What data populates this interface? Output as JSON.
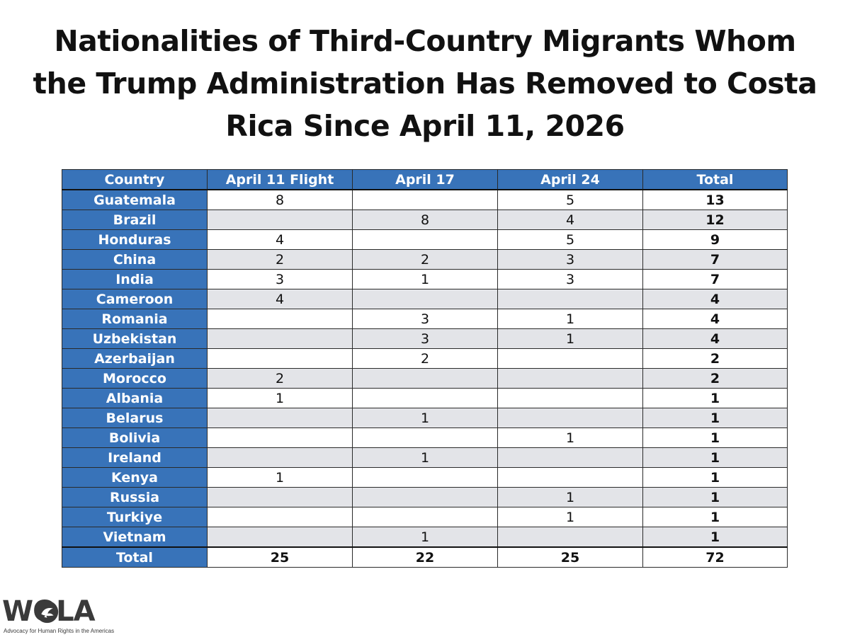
{
  "title": "Nationalities of Third-Country Migrants Whom the Trump Administration Has Removed to Costa Rica Since April 11, 2026",
  "chart_data": {
    "type": "table",
    "columns": [
      "Country",
      "April 11 Flight",
      "April 17",
      "April 24",
      "Total"
    ],
    "rows": [
      [
        "Guatemala",
        "8",
        "",
        "5",
        "13"
      ],
      [
        "Brazil",
        "",
        "8",
        "4",
        "12"
      ],
      [
        "Honduras",
        "4",
        "",
        "5",
        "9"
      ],
      [
        "China",
        "2",
        "2",
        "3",
        "7"
      ],
      [
        "India",
        "3",
        "1",
        "3",
        "7"
      ],
      [
        "Cameroon",
        "4",
        "",
        "",
        "4"
      ],
      [
        "Romania",
        "",
        "3",
        "1",
        "4"
      ],
      [
        "Uzbekistan",
        "",
        "3",
        "1",
        "4"
      ],
      [
        "Azerbaijan",
        "",
        "2",
        "",
        "2"
      ],
      [
        "Morocco",
        "2",
        "",
        "",
        "2"
      ],
      [
        "Albania",
        "1",
        "",
        "",
        "1"
      ],
      [
        "Belarus",
        "",
        "1",
        "",
        "1"
      ],
      [
        "Bolivia",
        "",
        "",
        "1",
        "1"
      ],
      [
        "Ireland",
        "",
        "1",
        "",
        "1"
      ],
      [
        "Kenya",
        "1",
        "",
        "",
        "1"
      ],
      [
        "Russia",
        "",
        "",
        "1",
        "1"
      ],
      [
        "Turkiye",
        "",
        "",
        "1",
        "1"
      ],
      [
        "Vietnam",
        "",
        "1",
        "",
        "1"
      ]
    ],
    "totals": [
      "Total",
      "25",
      "22",
      "25",
      "72"
    ]
  },
  "logo": {
    "wordmark": "WOLA",
    "tagline": "Advocacy for Human Rights in the Americas",
    "icon": "dove-emblem-icon"
  },
  "colors": {
    "header_blue": "#3873b9",
    "stripe_gray": "#e3e4e8",
    "text": "#111111",
    "logo_gray": "#3a3a3a"
  }
}
